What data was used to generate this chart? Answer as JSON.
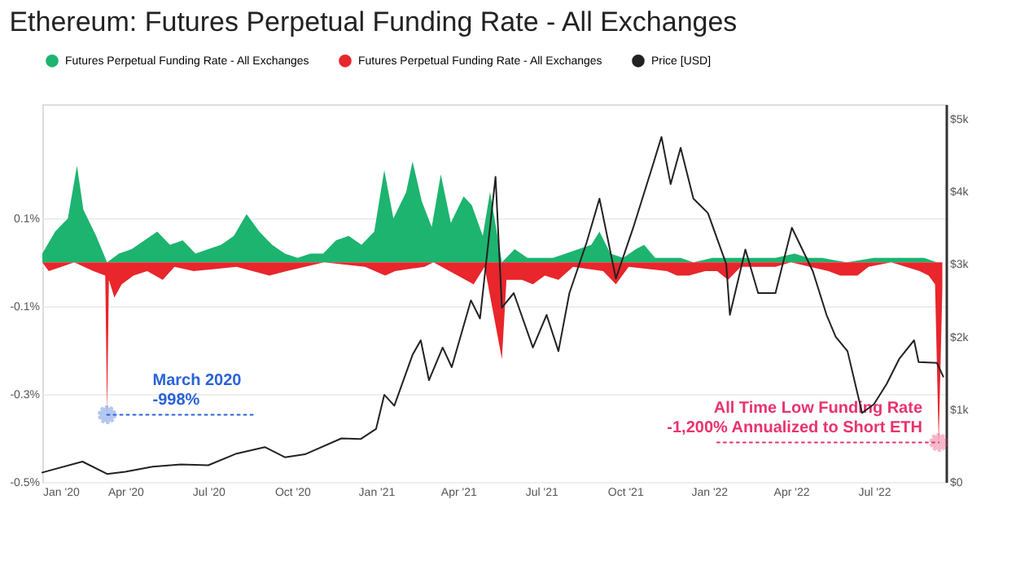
{
  "chart_data": {
    "type": "area",
    "title": "Ethereum: Futures Perpetual Funding Rate - All Exchanges",
    "legend": "top",
    "grid": "y",
    "xlim": [
      "2020-01-01",
      "2022-09-18"
    ],
    "xticks": [
      {
        "value": "2020-01-01",
        "label": "Jan '20"
      },
      {
        "value": "2020-04-01",
        "label": "Apr '20"
      },
      {
        "value": "2020-07-01",
        "label": "Jul '20"
      },
      {
        "value": "2020-10-01",
        "label": "Oct '20"
      },
      {
        "value": "2021-01-01",
        "label": "Jan '21"
      },
      {
        "value": "2021-04-01",
        "label": "Apr '21"
      },
      {
        "value": "2021-07-01",
        "label": "Jul '21"
      },
      {
        "value": "2021-10-01",
        "label": "Oct '21"
      },
      {
        "value": "2022-01-01",
        "label": "Jan '22"
      },
      {
        "value": "2022-04-01",
        "label": "Apr '22"
      },
      {
        "value": "2022-07-01",
        "label": "Jul '22"
      }
    ],
    "ylim": [
      -0.5,
      0.36
    ],
    "yticks": [
      {
        "value": 0.1,
        "label": "0.1%"
      },
      {
        "value": -0.1,
        "label": "-0.1%"
      },
      {
        "value": -0.3,
        "label": "-0.3%"
      },
      {
        "value": -0.5,
        "label": "-0.5%"
      }
    ],
    "y2lim": [
      0,
      5200
    ],
    "y2ticks": [
      {
        "value": 0,
        "label": "$0"
      },
      {
        "value": 1000,
        "label": "$1k"
      },
      {
        "value": 2000,
        "label": "$2k"
      },
      {
        "value": 3000,
        "label": "$3k"
      },
      {
        "value": 4000,
        "label": "$4k"
      },
      {
        "value": 5000,
        "label": "$5k"
      }
    ],
    "annotations": [
      {
        "text": "March 2020\n-998%",
        "x": "2020-03-12",
        "y": -0.347
      },
      {
        "text": "All Time Low Funding Rate\n-1,200% Annualized to Short ETH",
        "x": "2022-09-10",
        "y": -0.41
      }
    ],
    "series": [
      {
        "name": "Futures Perpetual Funding Rate - All Exchanges",
        "color": "#1db46f",
        "x": [
          "2020-01-01",
          "2020-01-15",
          "2020-01-29",
          "2020-02-08",
          "2020-02-15",
          "2020-02-29",
          "2020-03-12",
          "2020-03-25",
          "2020-04-08",
          "2020-04-22",
          "2020-05-06",
          "2020-05-20",
          "2020-06-03",
          "2020-06-17",
          "2020-07-01",
          "2020-07-15",
          "2020-07-29",
          "2020-08-12",
          "2020-08-26",
          "2020-09-09",
          "2020-09-23",
          "2020-10-07",
          "2020-10-21",
          "2020-11-04",
          "2020-11-18",
          "2020-12-02",
          "2020-12-16",
          "2020-12-30",
          "2021-01-10",
          "2021-01-20",
          "2021-02-03",
          "2021-02-10",
          "2021-02-20",
          "2021-03-03",
          "2021-03-13",
          "2021-03-24",
          "2021-04-07",
          "2021-04-16",
          "2021-04-28",
          "2021-05-06",
          "2021-05-19",
          "2021-06-02",
          "2021-06-16",
          "2021-06-30",
          "2021-07-14",
          "2021-07-28",
          "2021-08-11",
          "2021-08-25",
          "2021-09-03",
          "2021-09-15",
          "2021-09-29",
          "2021-10-13",
          "2021-10-22",
          "2021-11-03",
          "2021-11-17",
          "2021-12-01",
          "2021-12-15",
          "2022-01-05",
          "2022-02-01",
          "2022-02-20",
          "2022-03-15",
          "2022-04-05",
          "2022-04-20",
          "2022-05-05",
          "2022-06-01",
          "2022-07-01",
          "2022-07-20",
          "2022-08-10",
          "2022-08-25",
          "2022-09-08"
        ],
        "values": [
          0.02,
          0.07,
          0.1,
          0.22,
          0.12,
          0.06,
          0,
          0.02,
          0.03,
          0.05,
          0.07,
          0.04,
          0.05,
          0.02,
          0.03,
          0.04,
          0.06,
          0.11,
          0.07,
          0.04,
          0.02,
          0.01,
          0.02,
          0.02,
          0.05,
          0.06,
          0.04,
          0.07,
          0.21,
          0.1,
          0.16,
          0.23,
          0.14,
          0.08,
          0.2,
          0.09,
          0.15,
          0.13,
          0.06,
          0.16,
          0,
          0.03,
          0.01,
          0.01,
          0.01,
          0.02,
          0.03,
          0.04,
          0.07,
          0.02,
          0.01,
          0.03,
          0.04,
          0.01,
          0.01,
          0.01,
          0,
          0.01,
          0.01,
          0.01,
          0.01,
          0.02,
          0.01,
          0.01,
          0,
          0.01,
          0.01,
          0.01,
          0.01,
          0
        ]
      },
      {
        "name": "Futures Perpetual Funding Rate - All Exchanges",
        "color": "#e8262b",
        "x": [
          "2020-01-01",
          "2020-01-08",
          "2020-01-22",
          "2020-02-05",
          "2020-02-26",
          "2020-03-10",
          "2020-03-12",
          "2020-03-14",
          "2020-03-20",
          "2020-03-28",
          "2020-04-10",
          "2020-04-25",
          "2020-05-12",
          "2020-05-25",
          "2020-06-15",
          "2020-08-01",
          "2020-09-06",
          "2020-09-25",
          "2020-10-15",
          "2020-11-05",
          "2020-12-20",
          "2021-01-11",
          "2021-01-22",
          "2021-02-23",
          "2021-03-05",
          "2021-04-18",
          "2021-04-30",
          "2021-05-19",
          "2021-05-24",
          "2021-06-10",
          "2021-06-22",
          "2021-07-05",
          "2021-07-20",
          "2021-08-05",
          "2021-09-07",
          "2021-09-21",
          "2021-10-05",
          "2021-11-16",
          "2021-11-27",
          "2021-12-10",
          "2021-12-28",
          "2022-01-10",
          "2022-01-22",
          "2022-02-05",
          "2022-03-15",
          "2022-04-01",
          "2022-05-12",
          "2022-05-25",
          "2022-06-13",
          "2022-06-25",
          "2022-07-20",
          "2022-08-05",
          "2022-08-20",
          "2022-08-30",
          "2022-09-06",
          "2022-09-10",
          "2022-09-14"
        ],
        "values": [
          0,
          -0.02,
          -0.01,
          0,
          -0.02,
          -0.03,
          -0.347,
          -0.04,
          -0.08,
          -0.05,
          -0.03,
          -0.02,
          -0.04,
          -0.01,
          -0.02,
          -0.01,
          -0.03,
          -0.02,
          -0.01,
          0,
          -0.01,
          -0.03,
          -0.02,
          -0.01,
          0,
          -0.05,
          -0.01,
          -0.22,
          -0.04,
          -0.04,
          -0.05,
          -0.03,
          -0.04,
          -0.01,
          -0.02,
          -0.05,
          -0.01,
          -0.02,
          -0.03,
          -0.03,
          -0.02,
          -0.02,
          -0.04,
          -0.01,
          -0.01,
          0,
          -0.02,
          -0.03,
          -0.03,
          -0.01,
          0,
          -0.01,
          -0.02,
          -0.03,
          -0.05,
          -0.41,
          -0.06
        ]
      },
      {
        "name": "Price [USD]",
        "color": "#222222",
        "type": "line",
        "axis": "y2",
        "x": [
          "2020-01-01",
          "2020-02-14",
          "2020-03-12",
          "2020-04-01",
          "2020-05-01",
          "2020-06-01",
          "2020-07-01",
          "2020-08-01",
          "2020-09-01",
          "2020-09-23",
          "2020-10-15",
          "2020-11-24",
          "2020-12-15",
          "2021-01-01",
          "2021-01-10",
          "2021-01-21",
          "2021-02-10",
          "2021-02-19",
          "2021-02-28",
          "2021-03-15",
          "2021-03-25",
          "2021-04-15",
          "2021-04-25",
          "2021-05-12",
          "2021-05-19",
          "2021-06-01",
          "2021-06-22",
          "2021-07-07",
          "2021-07-20",
          "2021-08-01",
          "2021-08-20",
          "2021-09-03",
          "2021-09-21",
          "2021-10-10",
          "2021-10-30",
          "2021-11-10",
          "2021-11-20",
          "2021-12-01",
          "2021-12-15",
          "2021-12-31",
          "2022-01-20",
          "2022-01-24",
          "2022-02-10",
          "2022-02-24",
          "2022-03-15",
          "2022-04-02",
          "2022-04-25",
          "2022-05-10",
          "2022-05-20",
          "2022-06-02",
          "2022-06-18",
          "2022-07-01",
          "2022-07-15",
          "2022-07-29",
          "2022-08-14",
          "2022-08-19",
          "2022-09-08",
          "2022-09-15"
        ],
        "values": [
          130,
          280,
          110,
          140,
          210,
          240,
          230,
          390,
          480,
          340,
          380,
          600,
          590,
          730,
          1200,
          1050,
          1750,
          1950,
          1400,
          1850,
          1580,
          2500,
          2250,
          4200,
          2400,
          2600,
          1850,
          2300,
          1800,
          2600,
          3300,
          3900,
          2800,
          3500,
          4300,
          4750,
          4100,
          4600,
          3900,
          3700,
          3000,
          2300,
          3200,
          2600,
          2600,
          3500,
          2900,
          2300,
          2000,
          1800,
          950,
          1070,
          1350,
          1700,
          1950,
          1650,
          1640,
          1450
        ]
      },
      {
        "color": "#2a62d8",
        "type": "line",
        "line_style": "dotted",
        "x": [
          "2020-03-12",
          "2020-08-20"
        ],
        "values": [
          -0.347,
          -0.347
        ]
      },
      {
        "color": "#e8336d",
        "type": "line",
        "line_style": "dotted",
        "x": [
          "2022-01-10",
          "2022-09-10"
        ],
        "values": [
          -0.41,
          -0.41
        ]
      }
    ]
  }
}
